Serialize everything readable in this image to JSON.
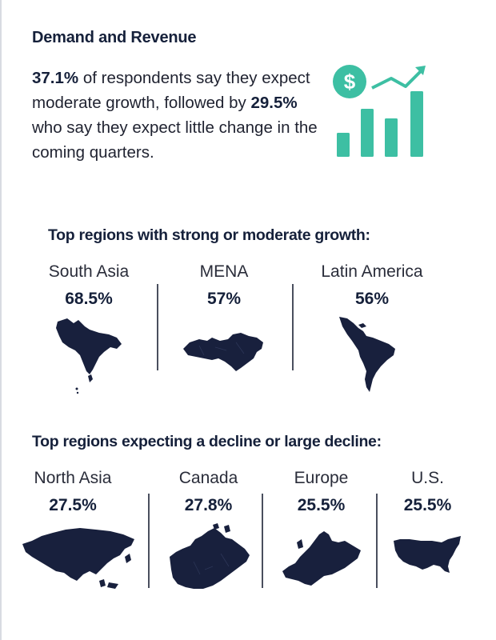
{
  "header": {
    "title": "Demand and Revenue",
    "intro_pct1": "37.1%",
    "intro_text1": " of respondents say they expect moderate growth, followed by ",
    "intro_pct2": "29.5%",
    "intro_text2": " who say they expect little change in the coming quarters."
  },
  "growth_icon": {
    "icon": "dollar-growth-chart-icon",
    "color": "#3dbfa3"
  },
  "growth_group": {
    "title": "Top regions with strong or moderate growth:",
    "regions": [
      {
        "name": "South Asia",
        "pct": "68.5%",
        "icon": "south-asia-map-icon"
      },
      {
        "name": "MENA",
        "pct": "57%",
        "icon": "mena-map-icon"
      },
      {
        "name": "Latin America",
        "pct": "56%",
        "icon": "latin-america-map-icon"
      }
    ]
  },
  "decline_group": {
    "title": "Top regions expecting a decline or large decline:",
    "regions": [
      {
        "name": "North Asia",
        "pct": "27.5%",
        "icon": "north-asia-map-icon"
      },
      {
        "name": "Canada",
        "pct": "27.8%",
        "icon": "canada-map-icon"
      },
      {
        "name": "Europe",
        "pct": "25.5%",
        "icon": "europe-map-icon"
      },
      {
        "name": "U.S.",
        "pct": "25.5%",
        "icon": "us-map-icon"
      }
    ]
  },
  "colors": {
    "map_fill": "#18203d",
    "accent": "#3dbfa3",
    "text": "#15203a"
  }
}
